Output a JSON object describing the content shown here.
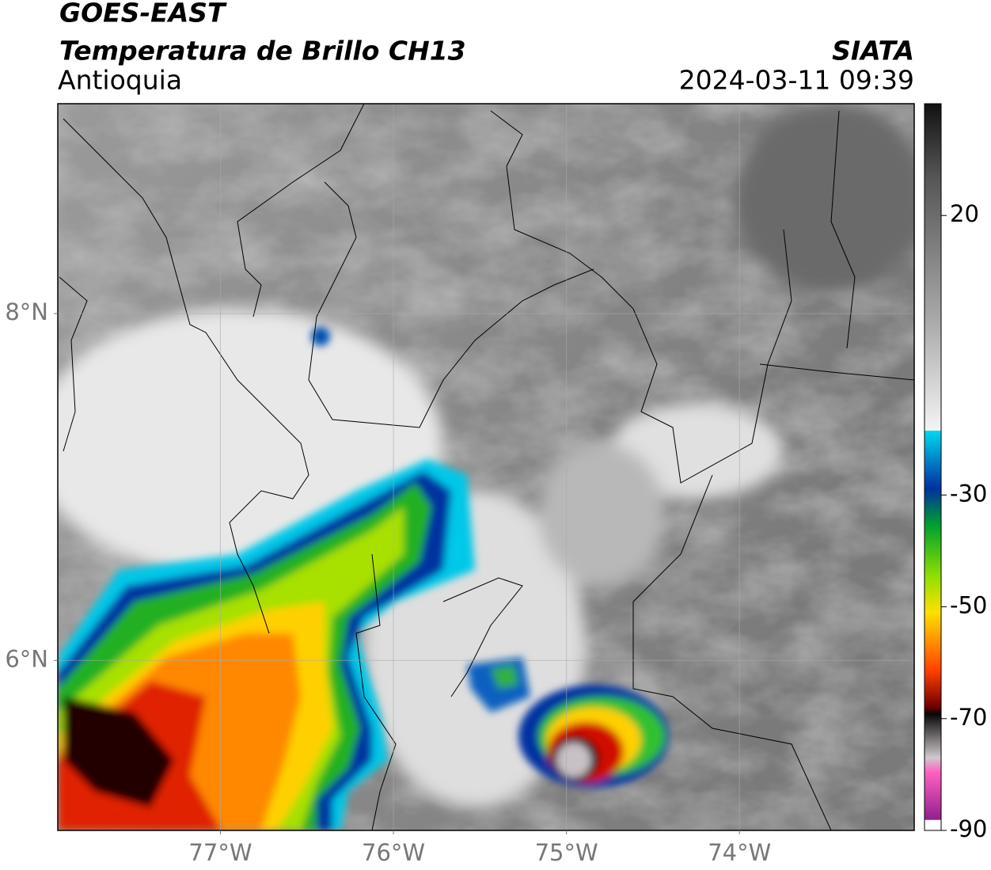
{
  "header": {
    "title": "GOES-EAST",
    "subtitle": "Temperatura de Brillo CH13",
    "region": "Antioquia",
    "source": "SIATA",
    "datetime": "2024-03-11 09:39"
  },
  "map": {
    "xlim": [
      -77.94,
      -72.99
    ],
    "ylim": [
      5.02,
      9.21
    ],
    "xticks": [
      {
        "value": -77,
        "label": "77°W"
      },
      {
        "value": -76,
        "label": "76°W"
      },
      {
        "value": -75,
        "label": "75°W"
      },
      {
        "value": -74,
        "label": "74°W"
      }
    ],
    "yticks": [
      {
        "value": 8,
        "label": "8°N"
      },
      {
        "value": 6,
        "label": "6°N"
      }
    ],
    "grid": true
  },
  "colorbar": {
    "lim": [
      -90,
      40
    ],
    "ticks": [
      20,
      -30,
      -50,
      -70,
      -90
    ]
  }
}
